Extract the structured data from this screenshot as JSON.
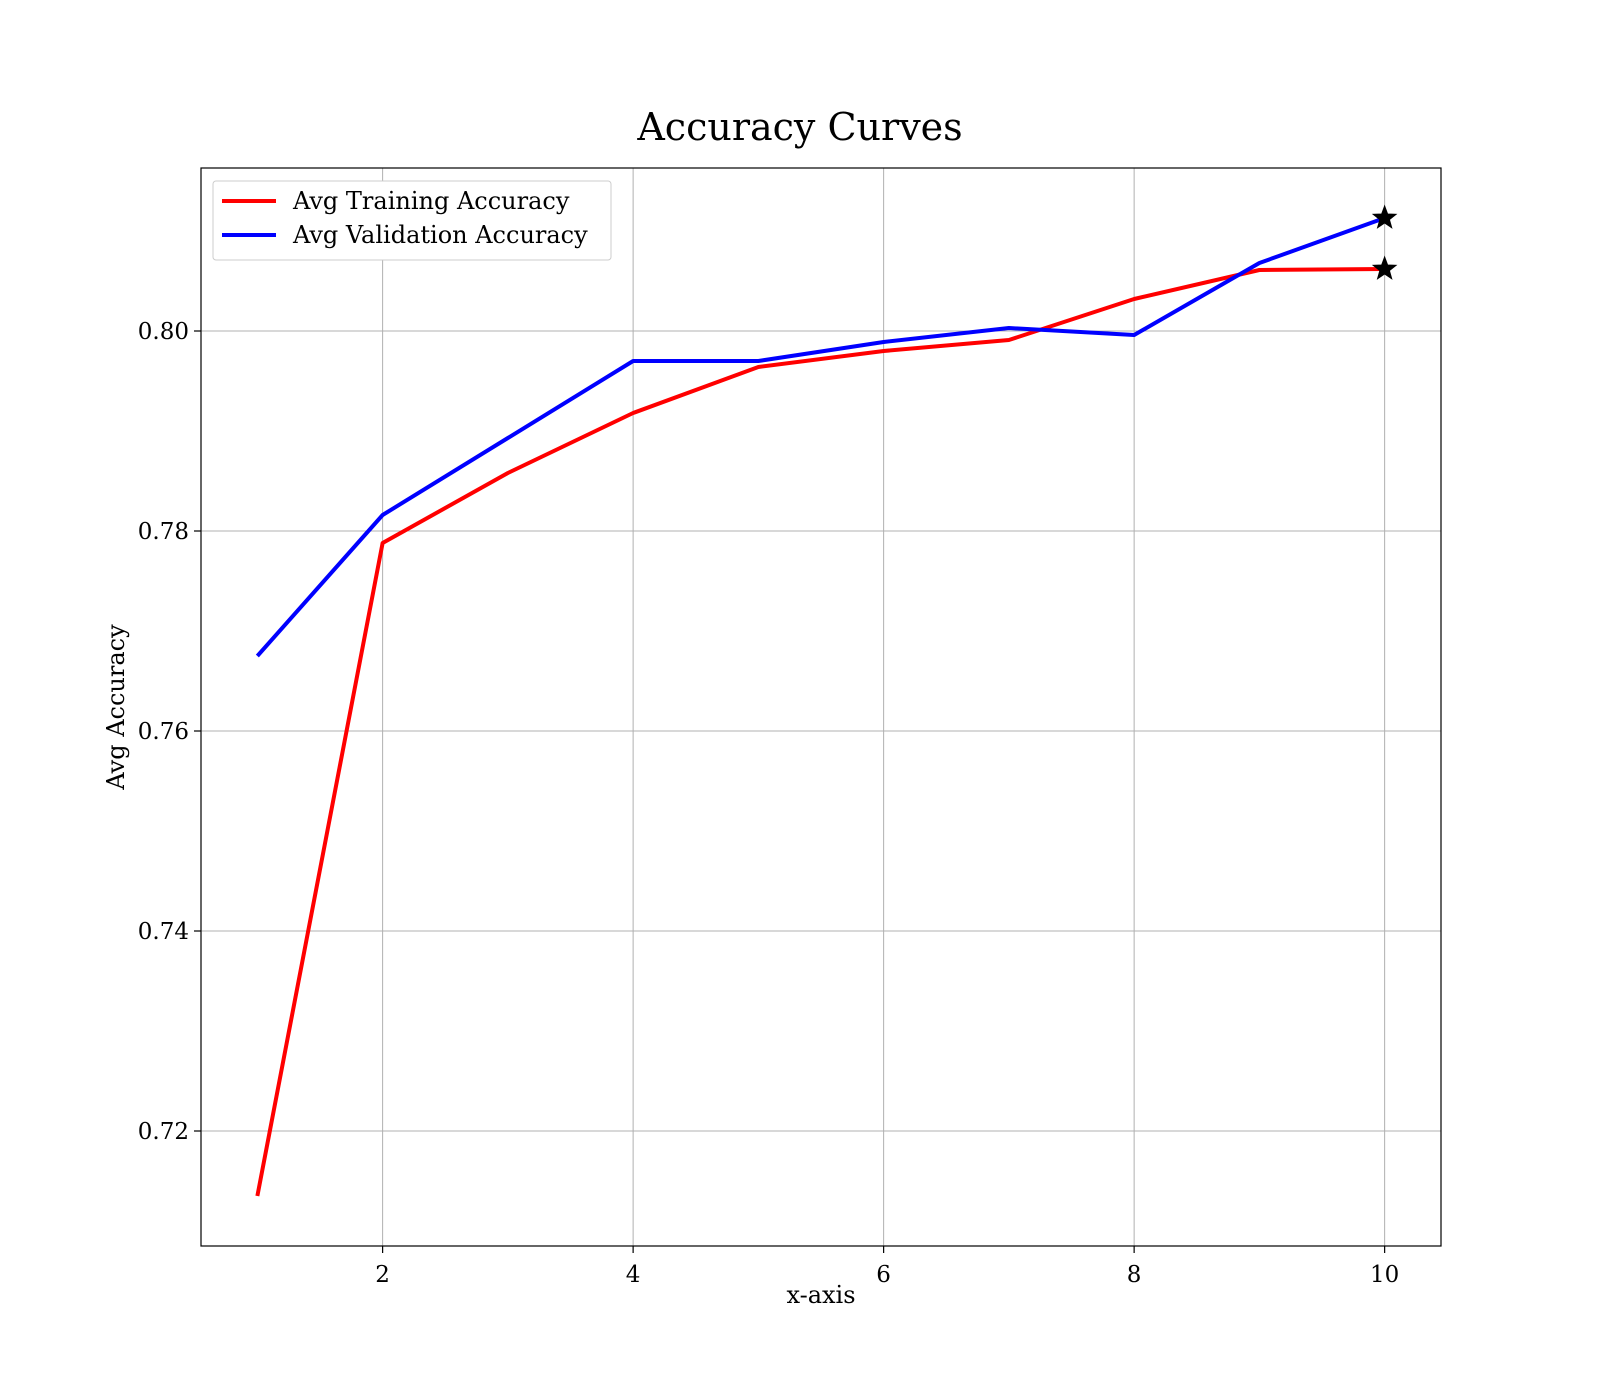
{
  "chart_data": {
    "type": "line",
    "title": "Accuracy Curves",
    "xlabel": "x-axis",
    "ylabel": "Avg Accuracy",
    "x": [
      1,
      2,
      3,
      4,
      5,
      6,
      7,
      8,
      9,
      10
    ],
    "xlim": [
      0.55,
      10.45
    ],
    "ylim": [
      0.7085,
      0.8163
    ],
    "xticks": [
      2,
      4,
      6,
      8,
      10
    ],
    "xtick_labels": [
      "2",
      "4",
      "6",
      "8",
      "10"
    ],
    "yticks": [
      0.72,
      0.74,
      0.76,
      0.78,
      0.8
    ],
    "ytick_labels": [
      "0.72",
      "0.74",
      "0.76",
      "0.78",
      "0.80"
    ],
    "grid": true,
    "legend_position": "top-left",
    "series": [
      {
        "name": "Avg Training Accuracy",
        "color": "#ff0000",
        "values": [
          0.7135,
          0.7788,
          0.7858,
          0.7918,
          0.7964,
          0.798,
          0.7991,
          0.8032,
          0.8061,
          0.8062
        ],
        "best_marker": {
          "x": 10,
          "y": 0.8062,
          "symbol": "star"
        }
      },
      {
        "name": "Avg Validation Accuracy",
        "color": "#0000ff",
        "values": [
          0.7675,
          0.7816,
          0.7893,
          0.797,
          0.797,
          0.7989,
          0.8003,
          0.7996,
          0.8068,
          0.8113
        ],
        "best_marker": {
          "x": 10,
          "y": 0.8113,
          "symbol": "star"
        }
      }
    ]
  }
}
